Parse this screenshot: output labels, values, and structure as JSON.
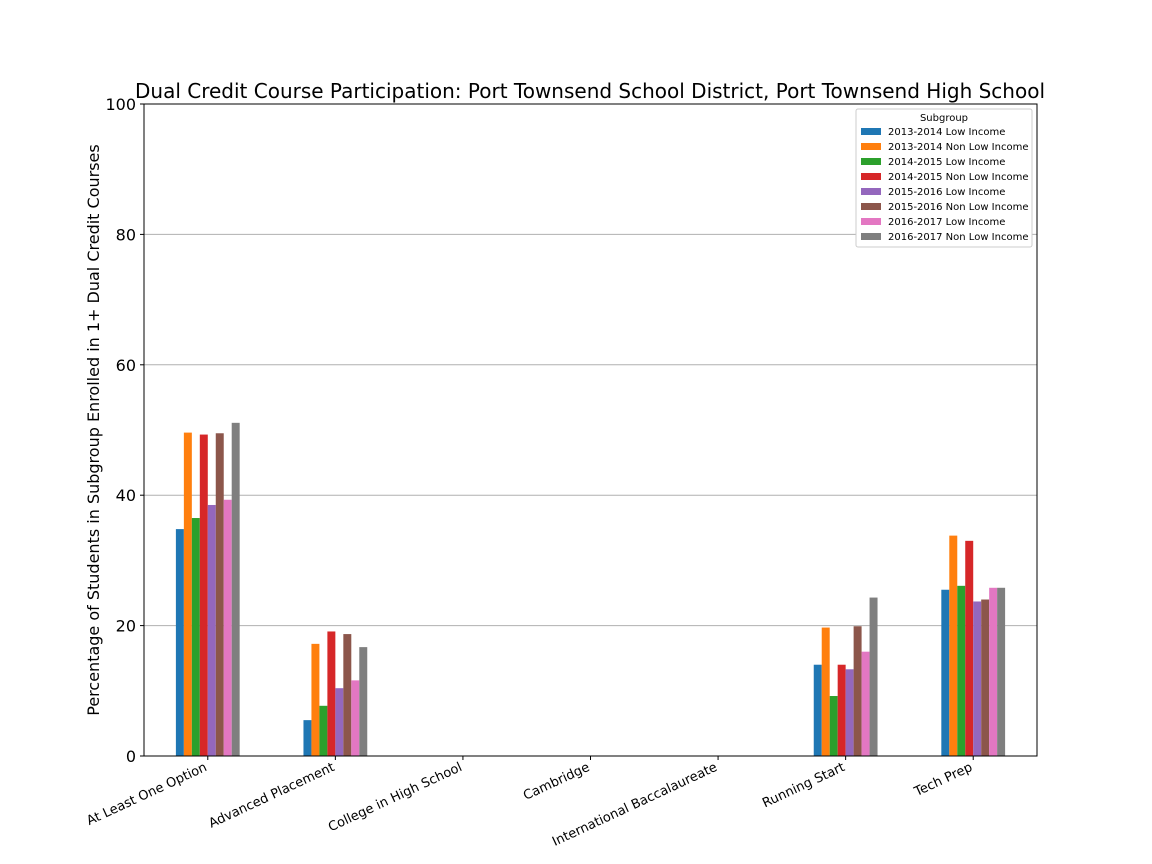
{
  "chart_data": {
    "type": "bar",
    "title": "Dual Credit Course Participation: Port Townsend School District, Port Townsend High School",
    "xlabel": "",
    "ylabel": "Percentage of Students in Subgroup Enrolled in 1+ Dual Credit Courses",
    "ylim": [
      0,
      100
    ],
    "yticks": [
      "0",
      "20",
      "40",
      "60",
      "80",
      "100"
    ],
    "grid": "horizontal",
    "legend_title": "Subgroup",
    "legend_position": "top-right",
    "categories": [
      "At Least One Option",
      "Advanced Placement",
      "College in High School",
      "Cambridge",
      "International Baccalaureate",
      "Running Start",
      "Tech Prep"
    ],
    "series": [
      {
        "name": "2013-2014 Low Income",
        "color": "#1f77b4",
        "values": [
          34.8,
          5.5,
          0,
          0,
          0,
          14.0,
          25.5
        ]
      },
      {
        "name": "2013-2014 Non Low Income",
        "color": "#ff7f0e",
        "values": [
          49.6,
          17.2,
          0,
          0,
          0,
          19.7,
          33.8
        ]
      },
      {
        "name": "2014-2015 Low Income",
        "color": "#2ca02c",
        "values": [
          36.5,
          7.7,
          0,
          0,
          0,
          9.2,
          26.1
        ]
      },
      {
        "name": "2014-2015 Non Low Income",
        "color": "#d62728",
        "values": [
          49.3,
          19.1,
          0,
          0,
          0,
          14.0,
          33.0
        ]
      },
      {
        "name": "2015-2016 Low Income",
        "color": "#9467bd",
        "values": [
          38.5,
          10.4,
          0,
          0,
          0,
          13.3,
          23.7
        ]
      },
      {
        "name": "2015-2016 Non Low Income",
        "color": "#8c564b",
        "values": [
          49.5,
          18.7,
          0,
          0,
          0,
          19.9,
          24.0
        ]
      },
      {
        "name": "2016-2017 Low Income",
        "color": "#e377c2",
        "values": [
          39.3,
          11.6,
          0,
          0,
          0,
          16.0,
          25.8
        ]
      },
      {
        "name": "2016-2017 Non Low Income",
        "color": "#7f7f7f",
        "values": [
          51.1,
          16.7,
          0,
          0,
          0,
          24.3,
          25.8
        ]
      }
    ]
  }
}
